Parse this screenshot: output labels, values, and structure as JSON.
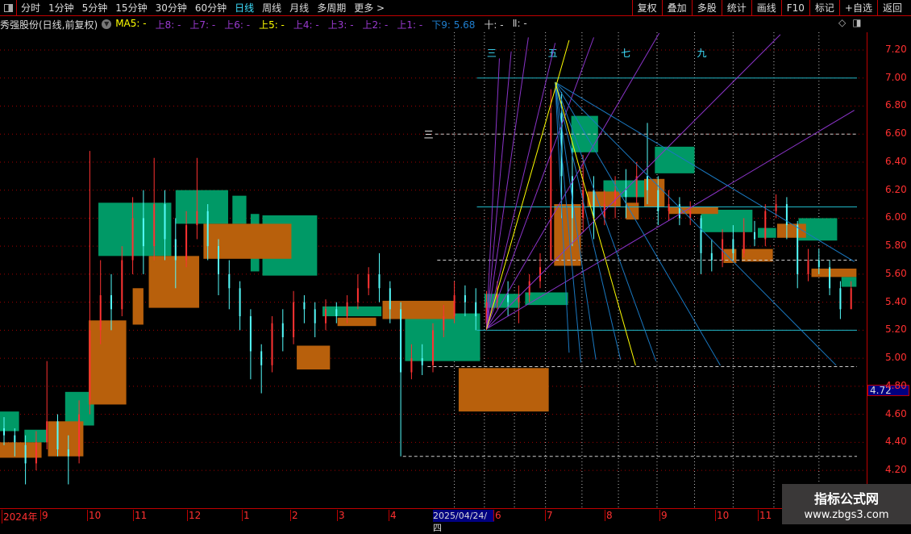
{
  "toolbar": {
    "periods": [
      "分时",
      "1分钟",
      "5分钟",
      "15分钟",
      "30分钟",
      "60分钟",
      "日线",
      "周线",
      "月线",
      "多周期",
      "更多 >"
    ],
    "active": "日线",
    "buttons": [
      "复权",
      "叠加",
      "多股",
      "统计",
      "画线",
      "F10",
      "标记",
      "+自选",
      "返回"
    ]
  },
  "info": {
    "title": "秀强股份(日线,前复权)",
    "items": [
      {
        "label": "MA5: -",
        "color": "#ffff00"
      },
      {
        "label": "上8: -",
        "color": "#9a3ad0"
      },
      {
        "label": "上7: -",
        "color": "#9a3ad0"
      },
      {
        "label": "上6: -",
        "color": "#9a3ad0"
      },
      {
        "label": "上5: -",
        "color": "#ffff00"
      },
      {
        "label": "上4: -",
        "color": "#9a3ad0"
      },
      {
        "label": "上3: -",
        "color": "#9a3ad0"
      },
      {
        "label": "上2: -",
        "color": "#9a3ad0"
      },
      {
        "label": "上1: -",
        "color": "#9a3ad0"
      },
      {
        "label": "下9: 5.68",
        "color": "#1f7fd0"
      },
      {
        "label": "十: -",
        "color": "#cccccc"
      },
      {
        "label": "Ⅱ: -",
        "color": "#cccccc"
      }
    ]
  },
  "icons": [
    "panel-toggle-icon",
    "dropdown-chevron-icon",
    "diamond-icon",
    "panel-toggle-icon"
  ],
  "watermark": {
    "name": "指标公式网",
    "url": "www.zbgs3.com"
  },
  "chart_data": {
    "type": "candlestick",
    "y_ticks": [
      "7.20",
      "7.00",
      "6.80",
      "6.60",
      "6.40",
      "6.20",
      "6.00",
      "5.80",
      "5.60",
      "5.40",
      "5.20",
      "5.00",
      "4.80",
      "4.60",
      "4.40",
      "4.20"
    ],
    "ylim": [
      4.2,
      7.2
    ],
    "current_price": "4.72",
    "x_ticks": [
      "2024年",
      "9",
      "10",
      "11",
      "12",
      "1",
      "2",
      "3",
      "4",
      "2025/04/24/四",
      "6",
      "7",
      "8",
      "9",
      "10",
      "11"
    ],
    "grid": true,
    "colors": {
      "up": "#ff3232",
      "down": "#54fcfc",
      "box_up": "#009966",
      "box_down": "#b8600c",
      "fan_up": "#8a34c8",
      "fan_down": "#1a78c0",
      "level": "#20b8c8",
      "yellow": "#ffff00",
      "dash": "#cccccc"
    },
    "candles_ochl": [
      [
        4.5,
        4.45,
        4.58,
        4.38
      ],
      [
        4.45,
        4.4,
        4.5,
        4.3
      ],
      [
        4.38,
        4.25,
        4.45,
        4.1
      ],
      [
        4.25,
        4.4,
        4.48,
        4.2
      ],
      [
        4.4,
        4.55,
        4.98,
        4.35
      ],
      [
        4.55,
        4.35,
        4.6,
        4.3
      ],
      [
        4.35,
        4.3,
        4.45,
        4.1
      ],
      [
        4.3,
        4.6,
        4.7,
        4.25
      ],
      [
        4.7,
        5.2,
        6.48,
        4.6
      ],
      [
        5.2,
        5.45,
        5.7,
        5.1
      ],
      [
        5.45,
        5.35,
        5.6,
        5.2
      ],
      [
        5.35,
        5.7,
        5.8,
        5.3
      ],
      [
        5.7,
        6.0,
        6.15,
        5.6
      ],
      [
        6.0,
        5.8,
        6.2,
        5.6
      ],
      [
        5.8,
        6.1,
        6.43,
        5.7
      ],
      [
        6.1,
        5.85,
        6.2,
        5.7
      ],
      [
        5.85,
        5.7,
        6.0,
        5.5
      ],
      [
        5.7,
        5.95,
        6.05,
        5.65
      ],
      [
        5.95,
        6.05,
        6.43,
        5.85
      ],
      [
        6.05,
        5.8,
        6.1,
        5.7
      ],
      [
        5.8,
        5.6,
        5.85,
        5.45
      ],
      [
        5.6,
        5.5,
        5.7,
        5.35
      ],
      [
        5.5,
        5.3,
        5.55,
        5.2
      ],
      [
        5.3,
        5.05,
        5.35,
        4.85
      ],
      [
        5.05,
        4.95,
        5.1,
        4.75
      ],
      [
        4.95,
        5.25,
        5.3,
        4.9
      ],
      [
        5.25,
        5.15,
        5.35,
        5.05
      ],
      [
        5.15,
        5.4,
        5.48,
        5.1
      ],
      [
        5.4,
        5.35,
        5.45,
        5.25
      ],
      [
        5.35,
        5.25,
        5.4,
        5.15
      ],
      [
        5.25,
        5.35,
        5.42,
        5.2
      ],
      [
        5.35,
        5.3,
        5.4,
        5.25
      ],
      [
        5.3,
        5.4,
        5.45,
        5.25
      ],
      [
        5.4,
        5.5,
        5.6,
        5.35
      ],
      [
        5.5,
        5.6,
        5.65,
        5.45
      ],
      [
        5.6,
        5.5,
        5.75,
        5.4
      ],
      [
        5.5,
        5.35,
        5.55,
        5.25
      ],
      [
        5.35,
        4.9,
        5.4,
        4.3
      ],
      [
        4.9,
        5.0,
        5.1,
        4.85
      ],
      [
        5.0,
        4.95,
        5.1,
        4.88
      ],
      [
        4.95,
        5.2,
        5.25,
        4.9
      ],
      [
        5.2,
        5.3,
        5.38,
        5.15
      ],
      [
        5.3,
        5.45,
        5.55,
        5.25
      ],
      [
        5.45,
        5.4,
        5.52,
        5.3
      ],
      [
        5.4,
        5.3,
        5.5,
        5.2
      ],
      [
        5.25,
        5.4,
        5.48,
        5.2
      ],
      [
        5.4,
        5.45,
        5.55,
        5.35
      ],
      [
        5.45,
        5.4,
        5.55,
        5.3
      ],
      [
        5.4,
        5.45,
        5.52,
        5.25
      ],
      [
        5.45,
        5.55,
        5.6,
        5.4
      ],
      [
        5.55,
        5.65,
        5.75,
        5.5
      ],
      [
        5.7,
        6.75,
        6.92,
        5.7
      ],
      [
        6.75,
        6.3,
        6.9,
        6.0
      ],
      [
        6.3,
        6.0,
        6.5,
        5.8
      ],
      [
        6.0,
        6.2,
        6.45,
        5.9
      ],
      [
        6.2,
        6.0,
        6.3,
        5.85
      ],
      [
        6.0,
        6.1,
        6.2,
        5.95
      ],
      [
        6.1,
        6.2,
        6.3,
        6.0
      ],
      [
        6.2,
        6.15,
        6.35,
        6.0
      ],
      [
        6.15,
        6.3,
        6.4,
        6.1
      ],
      [
        6.3,
        6.2,
        6.68,
        6.1
      ],
      [
        6.2,
        6.05,
        6.3,
        5.95
      ],
      [
        6.05,
        6.1,
        6.2,
        5.98
      ],
      [
        6.1,
        6.0,
        6.15,
        5.95
      ],
      [
        6.0,
        6.05,
        6.12,
        5.95
      ],
      [
        6.0,
        5.75,
        6.02,
        5.6
      ],
      [
        5.75,
        5.7,
        5.85,
        5.62
      ],
      [
        5.7,
        5.85,
        5.92,
        5.65
      ],
      [
        5.85,
        5.75,
        5.95,
        5.7
      ],
      [
        5.75,
        5.9,
        6.0,
        5.72
      ],
      [
        5.9,
        5.85,
        5.98,
        5.8
      ],
      [
        5.85,
        6.05,
        6.1,
        5.8
      ],
      [
        6.05,
        6.1,
        6.17,
        6.0
      ],
      [
        6.1,
        5.95,
        6.15,
        5.85
      ],
      [
        5.95,
        5.6,
        5.98,
        5.5
      ],
      [
        5.6,
        5.7,
        5.78,
        5.55
      ],
      [
        5.7,
        5.65,
        5.78,
        5.6
      ],
      [
        5.65,
        5.5,
        5.7,
        5.45
      ],
      [
        5.5,
        5.35,
        5.55,
        5.28
      ],
      [
        5.35,
        5.5,
        5.55,
        5.4
      ]
    ],
    "boxes_up": [
      [
        -0.4,
        1.4,
        4.48,
        4.62
      ],
      [
        1.9,
        4.0,
        4.4,
        4.49
      ],
      [
        5.7,
        8.4,
        4.52,
        4.76
      ],
      [
        8.8,
        15.6,
        5.73,
        6.11
      ],
      [
        16.0,
        20.9,
        5.96,
        6.2
      ],
      [
        21.3,
        22.6,
        5.96,
        6.16
      ],
      [
        23.0,
        23.8,
        5.62,
        6.03
      ],
      [
        24.1,
        29.2,
        5.59,
        6.02
      ],
      [
        29.7,
        35.2,
        5.3,
        5.37
      ],
      [
        37.4,
        44.4,
        4.98,
        5.32
      ],
      [
        44.8,
        48.1,
        5.36,
        5.46
      ],
      [
        48.6,
        52.6,
        5.38,
        5.47
      ],
      [
        52.9,
        55.4,
        6.47,
        6.73
      ],
      [
        55.9,
        60.7,
        6.15,
        6.27
      ],
      [
        60.7,
        64.4,
        6.32,
        6.51
      ],
      [
        65.0,
        69.8,
        5.9,
        6.06
      ],
      [
        70.3,
        72.0,
        5.86,
        5.93
      ],
      [
        74.1,
        77.7,
        5.84,
        6.0
      ],
      [
        78.1,
        79.5,
        5.51,
        5.58
      ]
    ],
    "boxes_down": [
      [
        -0.4,
        3.5,
        4.29,
        4.4
      ],
      [
        4.1,
        7.4,
        4.3,
        4.55
      ],
      [
        7.9,
        11.4,
        4.67,
        5.27
      ],
      [
        12.0,
        13.0,
        5.24,
        5.5
      ],
      [
        13.5,
        18.2,
        5.36,
        5.73
      ],
      [
        18.6,
        26.8,
        5.71,
        5.96
      ],
      [
        27.3,
        30.4,
        4.92,
        5.09
      ],
      [
        31.1,
        34.7,
        5.23,
        5.29
      ],
      [
        35.3,
        42.0,
        5.28,
        5.41
      ],
      [
        42.4,
        50.8,
        4.62,
        4.93
      ],
      [
        51.3,
        53.8,
        5.66,
        6.1
      ],
      [
        54.4,
        57.5,
        6.08,
        6.19
      ],
      [
        58.0,
        59.2,
        5.99,
        6.11
      ],
      [
        59.7,
        61.6,
        6.08,
        6.28
      ],
      [
        62.0,
        66.6,
        6.03,
        6.08
      ],
      [
        67.1,
        68.3,
        5.68,
        5.78
      ],
      [
        68.8,
        71.7,
        5.69,
        5.78
      ],
      [
        72.1,
        74.8,
        5.86,
        5.96
      ],
      [
        75.3,
        79.5,
        5.58,
        5.64
      ]
    ],
    "levels": [
      {
        "price": 7.0,
        "from": 44.1,
        "style": "solid"
      },
      {
        "price": 6.08,
        "from": 44.1,
        "style": "solid"
      },
      {
        "price": 5.2,
        "from": 44.1,
        "style": "solid"
      },
      {
        "price": 6.6,
        "from": 40.2,
        "style": "dashed"
      },
      {
        "price": 5.7,
        "from": 40.4,
        "style": "dashed"
      },
      {
        "price": 4.94,
        "from": 39.5,
        "style": "dashed"
      },
      {
        "price": 4.3,
        "from": 37.2,
        "style": "dashed"
      }
    ],
    "level_label": {
      "text": "三",
      "price": 6.6
    },
    "fan_origin_low": [
      45.0,
      5.21
    ],
    "fan_origin_high": [
      51.4,
      6.97
    ],
    "fan_up_ends": [
      [
        46.2,
        7.14
      ],
      [
        47.3,
        7.19
      ],
      [
        48.9,
        7.29
      ],
      [
        51.4,
        7.25
      ],
      [
        55.0,
        7.29
      ],
      [
        61.1,
        7.32
      ],
      [
        72.4,
        7.31
      ],
      [
        79.3,
        6.77
      ]
    ],
    "fan_down_ends": [
      [
        52.7,
        5.04
      ],
      [
        53.8,
        4.97
      ],
      [
        55.2,
        4.99
      ],
      [
        57.5,
        4.99
      ],
      [
        60.8,
        4.98
      ],
      [
        66.8,
        4.95
      ],
      [
        77.6,
        4.95
      ],
      [
        79.3,
        5.69
      ]
    ],
    "yellow_up_end": [
      52.7,
      7.27
    ],
    "yellow_down_end": [
      58.9,
      4.95
    ],
    "time_lines": [
      42.0,
      44.8,
      47.6,
      50.5,
      53.9,
      57.3,
      60.9,
      64.4,
      68.0,
      71.8,
      76.0
    ],
    "time_labels": [
      {
        "text": "三",
        "at": 1
      },
      {
        "text": "五",
        "at": 3
      },
      {
        "text": "七",
        "at": 5
      },
      {
        "text": "九",
        "at": 7
      }
    ]
  }
}
